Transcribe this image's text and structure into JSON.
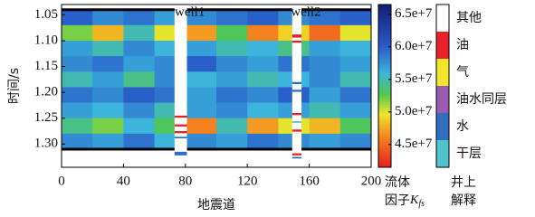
{
  "chart_data": {
    "type": "heatmap",
    "xlabel": "地震道",
    "ylabel": "时间/s",
    "xlim": [
      0,
      200
    ],
    "xticks": [
      0,
      40,
      80,
      120,
      160,
      200
    ],
    "ylim": [
      1.03,
      1.345
    ],
    "yticks": [
      1.05,
      1.1,
      1.15,
      1.2,
      1.25,
      1.3
    ],
    "y_inverted": true,
    "grid": true,
    "x_bins": [
      0,
      20,
      40,
      60,
      80,
      100,
      120,
      140,
      160,
      180,
      200
    ],
    "y_bins": [
      1.04,
      1.07,
      1.1,
      1.13,
      1.16,
      1.19,
      1.22,
      1.25,
      1.28,
      1.31
    ],
    "values": [
      [
        60000000,
        58000000,
        59000000,
        57000000,
        58000000,
        59000000,
        60000000,
        58000000,
        59000000,
        60000000
      ],
      [
        52000000,
        48000000,
        55000000,
        50000000,
        47000000,
        53000000,
        46000000,
        49000000,
        45000000,
        50000000
      ],
      [
        57000000,
        55000000,
        58000000,
        56000000,
        57000000,
        55000000,
        56000000,
        54000000,
        57000000,
        56000000
      ],
      [
        58000000,
        59000000,
        57000000,
        58000000,
        60000000,
        58000000,
        57000000,
        59000000,
        58000000,
        57000000
      ],
      [
        55000000,
        57000000,
        54000000,
        58000000,
        56000000,
        57000000,
        55000000,
        56000000,
        58000000,
        55000000
      ],
      [
        59000000,
        58000000,
        60000000,
        59000000,
        57000000,
        59000000,
        58000000,
        60000000,
        57000000,
        59000000
      ],
      [
        57000000,
        56000000,
        58000000,
        55000000,
        57000000,
        58000000,
        56000000,
        57000000,
        55000000,
        57000000
      ],
      [
        54000000,
        52000000,
        56000000,
        53000000,
        46000000,
        55000000,
        47000000,
        50000000,
        48000000,
        53000000
      ],
      [
        58000000,
        57000000,
        59000000,
        56000000,
        58000000,
        57000000,
        59000000,
        58000000,
        57000000,
        58000000
      ]
    ],
    "clim": [
      41500000,
      66500000
    ],
    "cticks": [
      {
        "value": 45000000,
        "label": "4.5e+7"
      },
      {
        "value": 50000000,
        "label": "5.0e+7"
      },
      {
        "value": 55000000,
        "label": "5.5e+7"
      },
      {
        "value": 60000000,
        "label": "6.0e+7"
      },
      {
        "value": 65000000,
        "label": "6.5e+7"
      }
    ],
    "colorbar_label": [
      "流体",
      "因子",
      "K",
      "fs"
    ],
    "wells": [
      {
        "name": "well1",
        "x": [
          73,
          81
        ],
        "intervals": [
          {
            "top": 1.245,
            "bottom": 1.249,
            "color": "#e8202a"
          },
          {
            "top": 1.262,
            "bottom": 1.266,
            "color": "#e8202a"
          },
          {
            "top": 1.275,
            "bottom": 1.279,
            "color": "#e8202a"
          },
          {
            "top": 1.286,
            "bottom": 1.289,
            "color": "#2f6fc0"
          },
          {
            "top": 1.315,
            "bottom": 1.322,
            "color": "#2f6fc0"
          }
        ]
      },
      {
        "name": "well2",
        "x": [
          149,
          155
        ],
        "intervals": [
          {
            "top": 1.088,
            "bottom": 1.094,
            "color": "#e8202a"
          },
          {
            "top": 1.1,
            "bottom": 1.104,
            "color": "#e8202a"
          },
          {
            "top": 1.18,
            "bottom": 1.184,
            "color": "#2f6fc0"
          },
          {
            "top": 1.195,
            "bottom": 1.199,
            "color": "#2f6fc0"
          },
          {
            "top": 1.24,
            "bottom": 1.244,
            "color": "#e8202a"
          },
          {
            "top": 1.256,
            "bottom": 1.259,
            "color": "#4fc4cf"
          },
          {
            "top": 1.272,
            "bottom": 1.276,
            "color": "#e8202a"
          },
          {
            "top": 1.318,
            "bottom": 1.322,
            "color": "#e8202a"
          },
          {
            "top": 1.325,
            "bottom": 1.328,
            "color": "#2f6fc0"
          }
        ]
      }
    ],
    "legend_title": [
      "井上",
      "解释"
    ],
    "legend": [
      {
        "name": "其他",
        "color": "#ffffff"
      },
      {
        "name": "油",
        "color": "#e8202a"
      },
      {
        "name": "气",
        "color": "#f2e62a"
      },
      {
        "name": "油水同层",
        "color": "#9a5bb0"
      },
      {
        "name": "水",
        "color": "#2f6fc0"
      },
      {
        "name": "干层",
        "color": "#4fc4cf"
      }
    ]
  }
}
